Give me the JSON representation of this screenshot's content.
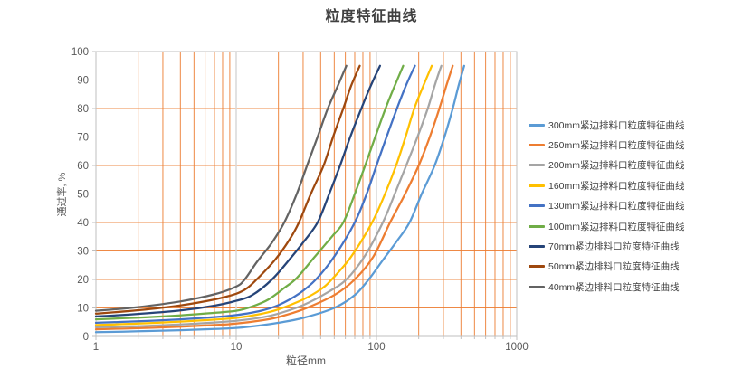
{
  "chart_data": {
    "type": "line",
    "title": "粒度特征曲线",
    "xlabel": "粒径mm",
    "ylabel": "通过率, %",
    "x_scale": "log",
    "xlim": [
      1,
      1000
    ],
    "ylim": [
      0,
      100
    ],
    "x_major_ticks": [
      "1",
      "10",
      "100",
      "1000"
    ],
    "y_ticks": [
      "0",
      "10",
      "20",
      "30",
      "40",
      "50",
      "60",
      "70",
      "80",
      "90",
      "100"
    ],
    "grid": {
      "horizontal": "on",
      "vertical_minor_log": "on",
      "horizontal_color": "#ED7D31",
      "minor_vertical_color": "#ED7D31",
      "major_vertical_color": "#D9D9D9",
      "axis_color": "#BFBFBF"
    },
    "legend_position": "right",
    "text_colors": {
      "title": "#404040",
      "axis": "#595959",
      "legend": "#404040"
    },
    "series": [
      {
        "name": "300mm紧边排料口粒度特征曲线",
        "color": "#5B9BD5",
        "points": [
          [
            1,
            1.5
          ],
          [
            2,
            1.8
          ],
          [
            4,
            2.2
          ],
          [
            7,
            2.6
          ],
          [
            10,
            3
          ],
          [
            15,
            3.9
          ],
          [
            20,
            4.8
          ],
          [
            30,
            6.5
          ],
          [
            50,
            10
          ],
          [
            70,
            14.5
          ],
          [
            88,
            20
          ],
          [
            110,
            26.5
          ],
          [
            140,
            33.5
          ],
          [
            172,
            40
          ],
          [
            210,
            50
          ],
          [
            260,
            60
          ],
          [
            305,
            70
          ],
          [
            350,
            80
          ],
          [
            385,
            88
          ],
          [
            422,
            95
          ]
        ]
      },
      {
        "name": "250mm紧边排料口粒度特征曲线",
        "color": "#ED7D31",
        "points": [
          [
            1,
            2.5
          ],
          [
            2,
            2.9
          ],
          [
            4,
            3.4
          ],
          [
            7,
            4
          ],
          [
            10,
            4.5
          ],
          [
            15,
            5.6
          ],
          [
            20,
            6.8
          ],
          [
            30,
            9.5
          ],
          [
            50,
            14.5
          ],
          [
            70,
            20
          ],
          [
            95,
            28
          ],
          [
            125,
            40
          ],
          [
            160,
            50
          ],
          [
            200,
            60
          ],
          [
            240,
            70
          ],
          [
            281,
            80
          ],
          [
            315,
            88
          ],
          [
            350,
            95
          ]
        ]
      },
      {
        "name": "200mm紧边排料口粒度特征曲线",
        "color": "#A5A5A5",
        "points": [
          [
            1,
            3.2
          ],
          [
            2,
            3.6
          ],
          [
            4,
            4.2
          ],
          [
            7,
            4.9
          ],
          [
            10,
            5.5
          ],
          [
            15,
            6.6
          ],
          [
            20,
            8
          ],
          [
            30,
            11
          ],
          [
            45,
            15.5
          ],
          [
            61,
            20
          ],
          [
            82,
            28
          ],
          [
            111,
            40
          ],
          [
            135,
            50
          ],
          [
            163,
            60
          ],
          [
            196,
            70
          ],
          [
            232,
            80
          ],
          [
            260,
            88
          ],
          [
            290,
            95
          ]
        ]
      },
      {
        "name": "160mm紧边排料口粒度特征曲线",
        "color": "#FFC000",
        "points": [
          [
            1,
            4
          ],
          [
            2,
            4.5
          ],
          [
            4,
            5.2
          ],
          [
            7,
            5.9
          ],
          [
            10,
            6.5
          ],
          [
            15,
            7.9
          ],
          [
            20,
            9.5
          ],
          [
            30,
            13
          ],
          [
            40,
            16.5
          ],
          [
            48,
            20
          ],
          [
            66,
            28
          ],
          [
            93,
            40
          ],
          [
            115,
            50
          ],
          [
            138,
            60
          ],
          [
            161,
            70
          ],
          [
            186,
            80
          ],
          [
            216,
            88
          ],
          [
            248,
            95
          ]
        ]
      },
      {
        "name": "130mm紧边排料口粒度特征曲线",
        "color": "#4472C4",
        "points": [
          [
            1,
            4.8
          ],
          [
            2,
            5.3
          ],
          [
            4,
            6
          ],
          [
            7,
            6.8
          ],
          [
            10,
            7.5
          ],
          [
            15,
            9
          ],
          [
            20,
            11
          ],
          [
            28,
            15
          ],
          [
            37,
            20
          ],
          [
            50,
            28
          ],
          [
            70,
            40
          ],
          [
            85,
            50
          ],
          [
            100,
            60
          ],
          [
            118,
            70
          ],
          [
            140,
            80
          ],
          [
            162,
            88
          ],
          [
            188,
            95
          ]
        ]
      },
      {
        "name": "100mm紧边排料口粒度特征曲线",
        "color": "#70AD47",
        "points": [
          [
            1,
            6
          ],
          [
            2,
            6.6
          ],
          [
            4,
            7.4
          ],
          [
            7,
            8.3
          ],
          [
            10,
            9
          ],
          [
            13,
            10.5
          ],
          [
            17,
            13
          ],
          [
            22,
            17
          ],
          [
            27,
            20.5
          ],
          [
            35,
            27
          ],
          [
            48,
            35
          ],
          [
            58,
            40
          ],
          [
            70,
            50
          ],
          [
            83,
            60
          ],
          [
            98,
            70
          ],
          [
            116,
            80
          ],
          [
            135,
            88
          ],
          [
            155,
            95
          ]
        ]
      },
      {
        "name": "70mm紧边排料口粒度特征曲线",
        "color": "#264478",
        "points": [
          [
            1,
            7
          ],
          [
            2,
            7.9
          ],
          [
            4,
            9.1
          ],
          [
            7,
            10.8
          ],
          [
            10,
            12.5
          ],
          [
            13,
            14.5
          ],
          [
            18,
            20
          ],
          [
            24,
            27
          ],
          [
            30,
            33
          ],
          [
            38,
            40
          ],
          [
            46,
            50
          ],
          [
            55,
            60
          ],
          [
            65,
            70
          ],
          [
            78,
            80
          ],
          [
            91,
            88
          ],
          [
            106,
            95
          ]
        ]
      },
      {
        "name": "50mm紧边排料口粒度特征曲线",
        "color": "#9E480E",
        "points": [
          [
            1,
            8
          ],
          [
            2,
            9.2
          ],
          [
            4,
            10.9
          ],
          [
            7,
            13
          ],
          [
            10,
            15
          ],
          [
            12,
            17
          ],
          [
            14,
            20
          ],
          [
            19,
            27
          ],
          [
            24,
            34
          ],
          [
            28,
            40
          ],
          [
            34,
            50
          ],
          [
            42,
            60
          ],
          [
            49,
            70
          ],
          [
            58,
            80
          ],
          [
            66,
            88
          ],
          [
            76,
            95
          ]
        ]
      },
      {
        "name": "40mm紧边排料口粒度特征曲线",
        "color": "#636363",
        "points": [
          [
            1,
            9
          ],
          [
            2,
            10.3
          ],
          [
            4,
            12.3
          ],
          [
            7,
            14.8
          ],
          [
            10,
            17.5
          ],
          [
            11.5,
            20
          ],
          [
            14,
            26
          ],
          [
            18,
            33
          ],
          [
            22,
            40
          ],
          [
            27,
            50
          ],
          [
            32,
            60
          ],
          [
            38,
            70
          ],
          [
            45,
            80
          ],
          [
            53,
            88
          ],
          [
            61,
            95
          ]
        ]
      }
    ]
  }
}
